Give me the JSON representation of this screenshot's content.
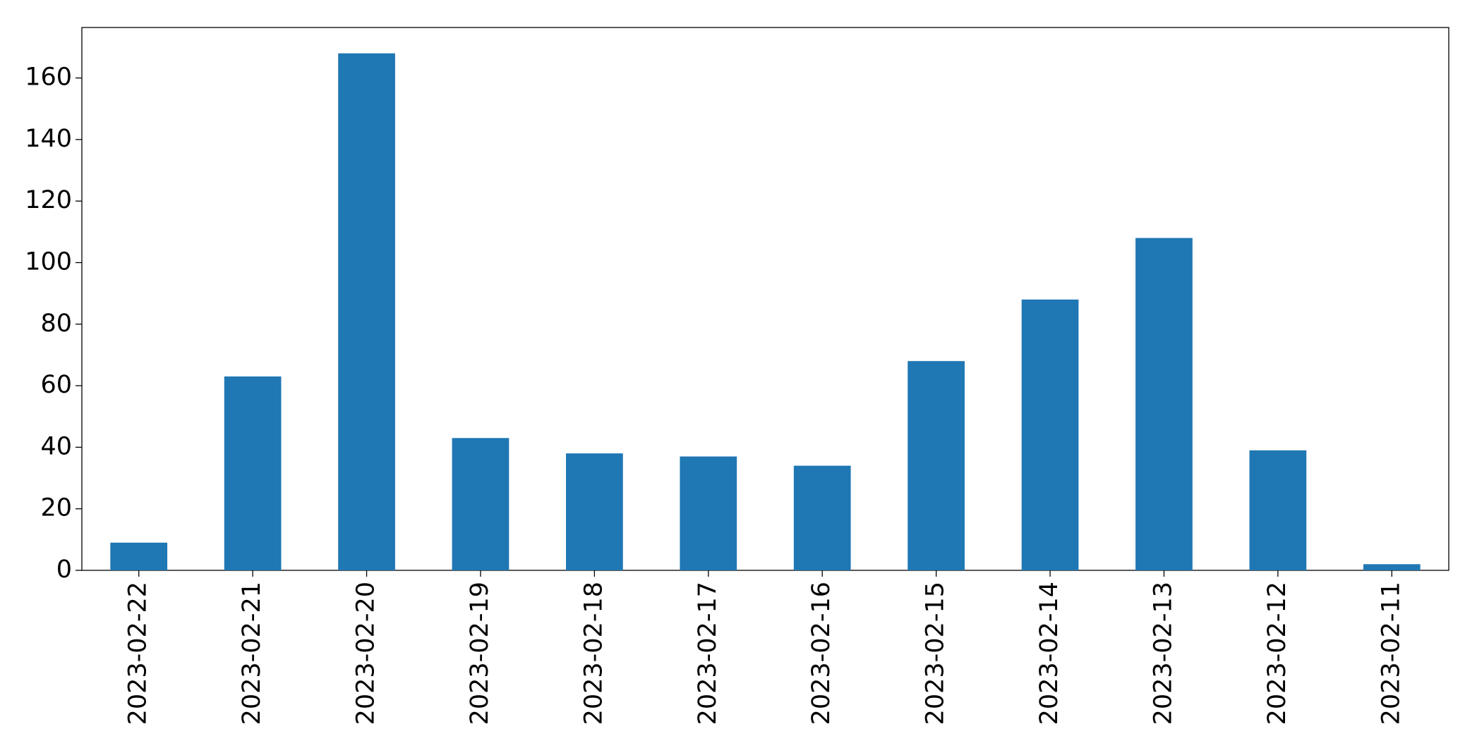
{
  "chart_data": {
    "type": "bar",
    "categories": [
      "2023-02-22",
      "2023-02-21",
      "2023-02-20",
      "2023-02-19",
      "2023-02-18",
      "2023-02-17",
      "2023-02-16",
      "2023-02-15",
      "2023-02-14",
      "2023-02-13",
      "2023-02-12",
      "2023-02-11"
    ],
    "values": [
      9,
      63,
      168,
      43,
      38,
      37,
      34,
      68,
      88,
      108,
      39,
      2
    ],
    "color": "#1f77b4",
    "ylim": [
      0,
      176.4
    ],
    "yticks": [
      0,
      20,
      40,
      60,
      80,
      100,
      120,
      140,
      160
    ],
    "grid": false
  }
}
